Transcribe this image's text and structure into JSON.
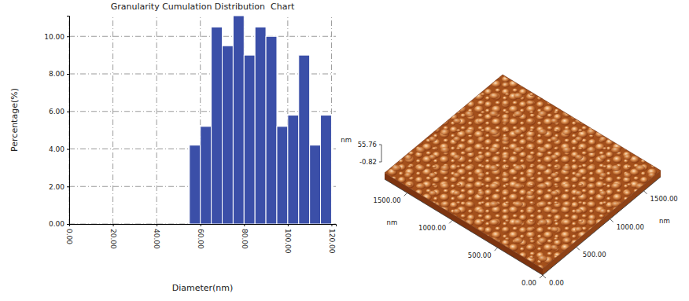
{
  "chart_data": [
    {
      "type": "histogram",
      "title": "Granularity Cumulation Distribution  Chart",
      "xlabel": "Diameter(nm)",
      "ylabel": "Percentage(%)",
      "bins": [
        55,
        60,
        65,
        70,
        75,
        80,
        85,
        90,
        95,
        100,
        105,
        110,
        115,
        120
      ],
      "values": [
        4.2,
        5.2,
        10.5,
        9.5,
        11.1,
        9.0,
        10.5,
        10.0,
        5.2,
        5.8,
        9.0,
        4.2,
        5.8
      ],
      "color": "#3b4fa8",
      "xlim": [
        0,
        122
      ],
      "ylim": [
        0,
        11.1
      ],
      "xticks": [
        {
          "value": 0,
          "label": "0.00"
        },
        {
          "value": 20,
          "label": "20.00"
        },
        {
          "value": 40,
          "label": "40.00"
        },
        {
          "value": 60,
          "label": "60.00"
        },
        {
          "value": 80,
          "label": "80.00"
        },
        {
          "value": 100,
          "label": "100.00"
        },
        {
          "value": 120,
          "label": "120.00"
        }
      ],
      "yticks": [
        {
          "value": 0,
          "label": "0.00"
        },
        {
          "value": 2,
          "label": "2.00"
        },
        {
          "value": 4,
          "label": "4.00"
        },
        {
          "value": 6,
          "label": "6.00"
        },
        {
          "value": 8,
          "label": "8.00"
        },
        {
          "value": 10,
          "label": "10.00"
        }
      ],
      "grid": true
    },
    {
      "type": "surface",
      "xlabel": "nm",
      "ylabel": "nm",
      "zlabel": "nm",
      "xlim": [
        0,
        1750
      ],
      "ylim": [
        0,
        1750
      ],
      "zlim": [
        -0.82,
        55.76
      ],
      "xticks": [
        {
          "value": 0,
          "label": "0.00"
        },
        {
          "value": 500,
          "label": "500.00"
        },
        {
          "value": 1000,
          "label": "1000.00"
        },
        {
          "value": 1500,
          "label": "1500.00"
        }
      ],
      "yticks": [
        {
          "value": 0,
          "label": "0.00"
        },
        {
          "value": 500,
          "label": "500.00"
        },
        {
          "value": 1000,
          "label": "1000.00"
        },
        {
          "value": 1500,
          "label": "1500.00"
        }
      ]
    }
  ]
}
